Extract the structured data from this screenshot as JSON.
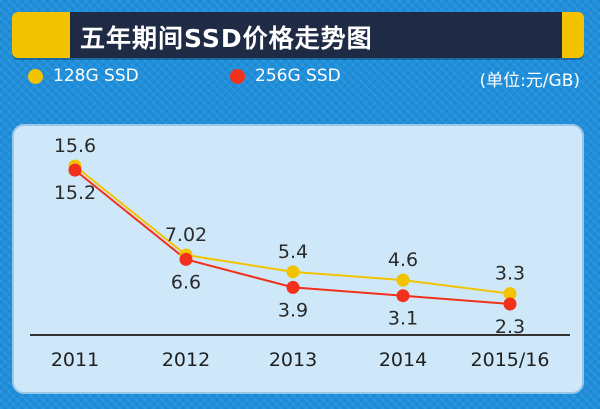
{
  "title": "五年期间SSD价格走势图",
  "unit_label": "(单位:元/GB)",
  "colors": {
    "background": "#1f8fdc",
    "title_bg": "#1f2a44",
    "accent": "#f3c300",
    "series_128": "#f3c300",
    "series_256": "#f2311c",
    "panel": "#cfe8f9"
  },
  "chart_data": {
    "type": "line",
    "title": "五年期间SSD价格走势图",
    "categories": [
      "2011",
      "2012",
      "2013",
      "2014",
      "2015/16"
    ],
    "ylabel": "(单位:元/GB)",
    "grid": false,
    "legend_position": "top",
    "series": [
      {
        "name": "128G SSD",
        "values": [
          15.6,
          7.02,
          5.4,
          4.6,
          3.3
        ],
        "labels": [
          "15.6",
          "7.02",
          "5.4",
          "4.6",
          "3.3"
        ],
        "color": "#f3c300"
      },
      {
        "name": "256G SSD",
        "values": [
          15.2,
          6.6,
          3.9,
          3.1,
          2.3
        ],
        "labels": [
          "15.2",
          "6.6",
          "3.9",
          "3.1",
          "2.3"
        ],
        "color": "#f2311c"
      }
    ]
  }
}
